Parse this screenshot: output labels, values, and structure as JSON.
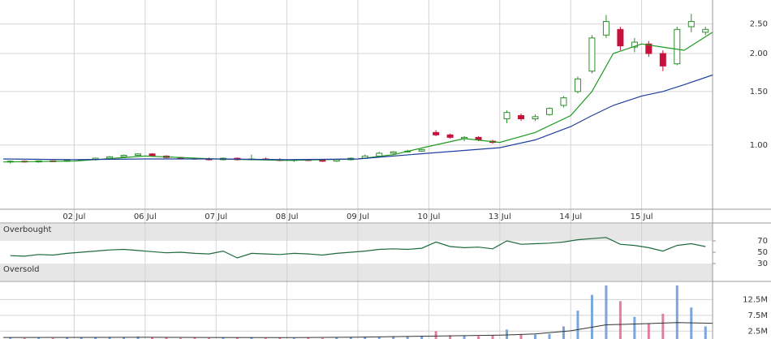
{
  "chart_data": [
    {
      "type": "candlestick",
      "log_scale": true,
      "grid": true,
      "up_color": "#2f8f2f",
      "down_color": "#c8103c",
      "xlim": [
        0,
        10
      ],
      "ylim": [
        0.615,
        3.0
      ],
      "xticks": [
        {
          "value": 1,
          "label": "02 Jul"
        },
        {
          "value": 2,
          "label": "06 Jul"
        },
        {
          "value": 3,
          "label": "07 Jul"
        },
        {
          "value": 4,
          "label": "08 Jul"
        },
        {
          "value": 5,
          "label": "09 Jul"
        },
        {
          "value": 6,
          "label": "10 Jul"
        },
        {
          "value": 7,
          "label": "13 Jul"
        },
        {
          "value": 8,
          "label": "14 Jul"
        },
        {
          "value": 9,
          "label": "15 Jul"
        }
      ],
      "yticks": [
        {
          "value": 1,
          "label": "1.00"
        },
        {
          "value": 1.5,
          "label": "1.50"
        },
        {
          "value": 2,
          "label": "2.00"
        },
        {
          "value": 2.5,
          "label": "2.50"
        }
      ],
      "x": [
        0.1,
        0.3,
        0.5,
        0.7,
        0.9,
        1.1,
        1.3,
        1.5,
        1.7,
        1.9,
        2.1,
        2.3,
        2.5,
        2.7,
        2.9,
        3.1,
        3.3,
        3.5,
        3.7,
        3.9,
        4.1,
        4.3,
        4.5,
        4.7,
        4.9,
        5.1,
        5.3,
        5.5,
        5.7,
        5.9,
        6.1,
        6.3,
        6.5,
        6.7,
        6.9,
        7.1,
        7.3,
        7.5,
        7.7,
        7.9,
        8.1,
        8.3,
        8.5,
        8.7,
        8.9,
        9.1,
        9.3,
        9.5,
        9.7,
        9.9
      ],
      "open": [
        0.88,
        0.885,
        0.88,
        0.887,
        0.884,
        0.89,
        0.895,
        0.905,
        0.915,
        0.925,
        0.935,
        0.92,
        0.91,
        0.905,
        0.9,
        0.895,
        0.905,
        0.895,
        0.9,
        0.895,
        0.89,
        0.895,
        0.89,
        0.885,
        0.895,
        0.905,
        0.92,
        0.94,
        0.95,
        0.955,
        1.1,
        1.08,
        1.05,
        1.06,
        1.03,
        1.22,
        1.25,
        1.22,
        1.26,
        1.35,
        1.5,
        1.75,
        2.3,
        2.4,
        2.1,
        2.15,
        2.0,
        1.85,
        2.45,
        2.35
      ],
      "high": [
        0.89,
        0.89,
        0.89,
        0.89,
        0.892,
        0.9,
        0.91,
        0.92,
        0.93,
        0.94,
        0.94,
        0.925,
        0.915,
        0.91,
        0.91,
        0.91,
        0.91,
        0.93,
        0.91,
        0.905,
        0.9,
        0.9,
        0.9,
        0.9,
        0.91,
        0.93,
        0.95,
        0.955,
        0.965,
        0.97,
        1.12,
        1.09,
        1.07,
        1.07,
        1.04,
        1.3,
        1.27,
        1.26,
        1.33,
        1.45,
        1.68,
        2.3,
        2.68,
        2.45,
        2.25,
        2.2,
        2.05,
        2.45,
        2.7,
        2.45
      ],
      "low": [
        0.87,
        0.875,
        0.875,
        0.88,
        0.88,
        0.885,
        0.89,
        0.9,
        0.91,
        0.92,
        0.915,
        0.905,
        0.9,
        0.895,
        0.89,
        0.89,
        0.89,
        0.89,
        0.89,
        0.885,
        0.88,
        0.885,
        0.88,
        0.88,
        0.89,
        0.9,
        0.915,
        0.935,
        0.945,
        0.95,
        1.07,
        1.05,
        1.03,
        1.03,
        1.01,
        1.18,
        1.2,
        1.2,
        1.25,
        1.33,
        1.48,
        1.72,
        2.25,
        2.05,
        2.02,
        1.95,
        1.75,
        1.83,
        2.35,
        2.3
      ],
      "close": [
        0.885,
        0.88,
        0.887,
        0.884,
        0.89,
        0.895,
        0.905,
        0.915,
        0.925,
        0.935,
        0.92,
        0.91,
        0.905,
        0.9,
        0.895,
        0.905,
        0.895,
        0.9,
        0.895,
        0.89,
        0.895,
        0.89,
        0.885,
        0.895,
        0.905,
        0.92,
        0.94,
        0.95,
        0.955,
        0.965,
        1.08,
        1.06,
        1.06,
        1.04,
        1.02,
        1.28,
        1.22,
        1.24,
        1.32,
        1.43,
        1.65,
        2.25,
        2.55,
        2.12,
        2.18,
        2.0,
        1.82,
        2.4,
        2.55,
        2.4
      ],
      "lines": [
        {
          "color": "#1e9a1e",
          "x": [
            0,
            1,
            2,
            3,
            4,
            5,
            5.5,
            6,
            6.5,
            7,
            7.5,
            8,
            8.3,
            8.6,
            9,
            9.3,
            9.6,
            10
          ],
          "values": [
            0.88,
            0.885,
            0.92,
            0.9,
            0.89,
            0.9,
            0.93,
            0.99,
            1.05,
            1.02,
            1.1,
            1.25,
            1.5,
            2.0,
            2.15,
            2.1,
            2.05,
            2.35
          ]
        },
        {
          "color": "#1f3fa0",
          "x": [
            0,
            1,
            2,
            3,
            4,
            5,
            5.5,
            6,
            6.5,
            7,
            7.5,
            8,
            8.3,
            8.6,
            9,
            9.3,
            9.6,
            10
          ],
          "values": [
            0.9,
            0.895,
            0.9,
            0.9,
            0.895,
            0.9,
            0.92,
            0.94,
            0.96,
            0.98,
            1.04,
            1.15,
            1.25,
            1.35,
            1.45,
            1.5,
            1.58,
            1.7
          ]
        }
      ]
    },
    {
      "type": "line",
      "color": "#1d6b3e",
      "ylim": [
        0,
        100
      ],
      "yticks": [
        30,
        50,
        70
      ],
      "bands": [
        {
          "label": "Overbought",
          "range": [
            70,
            100
          ]
        },
        {
          "label": "Oversold",
          "range": [
            0,
            30
          ]
        }
      ],
      "x": [
        0.1,
        0.3,
        0.5,
        0.7,
        0.9,
        1.1,
        1.3,
        1.5,
        1.7,
        1.9,
        2.1,
        2.3,
        2.5,
        2.7,
        2.9,
        3.1,
        3.3,
        3.5,
        3.7,
        3.9,
        4.1,
        4.3,
        4.5,
        4.7,
        4.9,
        5.1,
        5.3,
        5.5,
        5.7,
        5.9,
        6.1,
        6.3,
        6.5,
        6.7,
        6.9,
        7.1,
        7.3,
        7.5,
        7.7,
        7.9,
        8.1,
        8.3,
        8.5,
        8.7,
        8.9,
        9.1,
        9.3,
        9.5,
        9.7,
        9.9
      ],
      "values": [
        44,
        43,
        46,
        45,
        48,
        50,
        52,
        54,
        55,
        53,
        51,
        49,
        50,
        48,
        47,
        52,
        40,
        48,
        47,
        46,
        48,
        47,
        45,
        48,
        50,
        52,
        55,
        56,
        55,
        57,
        68,
        60,
        58,
        59,
        56,
        70,
        64,
        65,
        66,
        68,
        72,
        74,
        76,
        64,
        62,
        58,
        52,
        62,
        65,
        60
      ]
    },
    {
      "type": "bar",
      "up_color": "#7aa6dc",
      "down_color": "#e17f9d",
      "ylim": [
        0,
        18000000
      ],
      "yticks": [
        {
          "value": 2500000,
          "label": "2.5M"
        },
        {
          "value": 7500000,
          "label": "7.5M"
        },
        {
          "value": 12500000,
          "label": "12.5M"
        }
      ],
      "x": [
        0.1,
        0.3,
        0.5,
        0.7,
        0.9,
        1.1,
        1.3,
        1.5,
        1.7,
        1.9,
        2.1,
        2.3,
        2.5,
        2.7,
        2.9,
        3.1,
        3.3,
        3.5,
        3.7,
        3.9,
        4.1,
        4.3,
        4.5,
        4.7,
        4.9,
        5.1,
        5.3,
        5.5,
        5.7,
        5.9,
        6.1,
        6.3,
        6.5,
        6.7,
        6.9,
        7.1,
        7.3,
        7.5,
        7.7,
        7.9,
        8.1,
        8.3,
        8.5,
        8.7,
        8.9,
        9.1,
        9.3,
        9.5,
        9.7,
        9.9
      ],
      "values": [
        400000,
        300000,
        500000,
        300000,
        400000,
        600000,
        500000,
        700000,
        600000,
        800000,
        500000,
        400000,
        300000,
        400000,
        300000,
        500000,
        400000,
        600000,
        300000,
        400000,
        300000,
        400000,
        300000,
        500000,
        600000,
        800000,
        700000,
        900000,
        800000,
        1000000,
        2500000,
        1200000,
        1000000,
        900000,
        1100000,
        3000000,
        1500000,
        1400000,
        1600000,
        4000000,
        9000000,
        14000000,
        17000000,
        12000000,
        7000000,
        5000000,
        8000000,
        17000000,
        10000000,
        4000000
      ],
      "lines": [
        {
          "color": "#333333",
          "x": [
            0,
            2,
            4,
            5,
            6,
            7,
            7.5,
            8,
            8.5,
            9,
            9.5,
            10
          ],
          "values": [
            500000,
            550000,
            450000,
            600000,
            900000,
            1200000,
            1600000,
            2600000,
            4500000,
            4800000,
            5200000,
            5000000
          ]
        }
      ]
    }
  ]
}
